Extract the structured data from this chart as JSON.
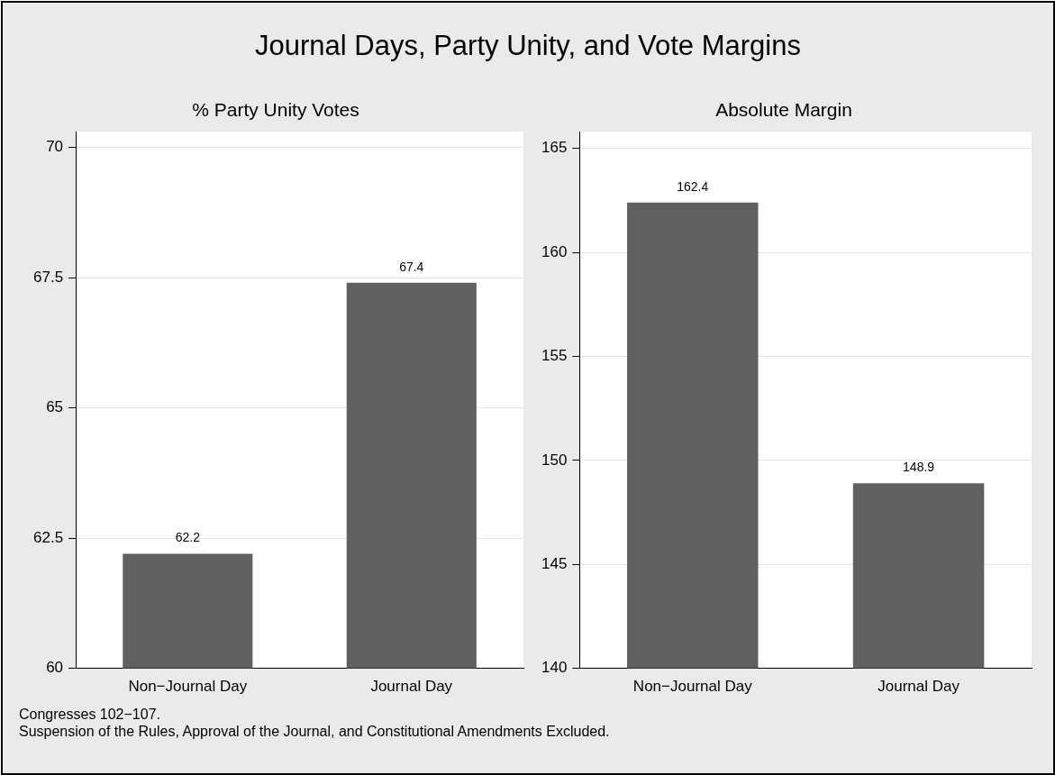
{
  "chart_data": [
    {
      "type": "other",
      "title": "Journal Days, Party Unity, and Vote Margins",
      "annotations": [
        "Congresses 102−107.",
        "Suspension of the Rules, Approval of the Journal, and Constitutional Amendments Excluded."
      ]
    },
    {
      "type": "bar",
      "title": "% Party Unity Votes",
      "categories": [
        "Non−Journal Day",
        "Journal Day"
      ],
      "values": [
        62.2,
        67.4
      ],
      "color": "#606060",
      "ylim": [
        60,
        70.3
      ],
      "yticks": [
        60,
        62.5,
        65,
        67.5,
        70
      ],
      "grid": "y",
      "data_labels": true,
      "legend": false
    },
    {
      "type": "bar",
      "title": "Absolute Margin",
      "categories": [
        "Non−Journal Day",
        "Journal Day"
      ],
      "values": [
        162.4,
        148.9
      ],
      "color": "#606060",
      "ylim": [
        140,
        165.8
      ],
      "yticks": [
        140,
        145,
        150,
        155,
        160,
        165
      ],
      "grid": "y",
      "data_labels": true,
      "legend": false
    }
  ]
}
